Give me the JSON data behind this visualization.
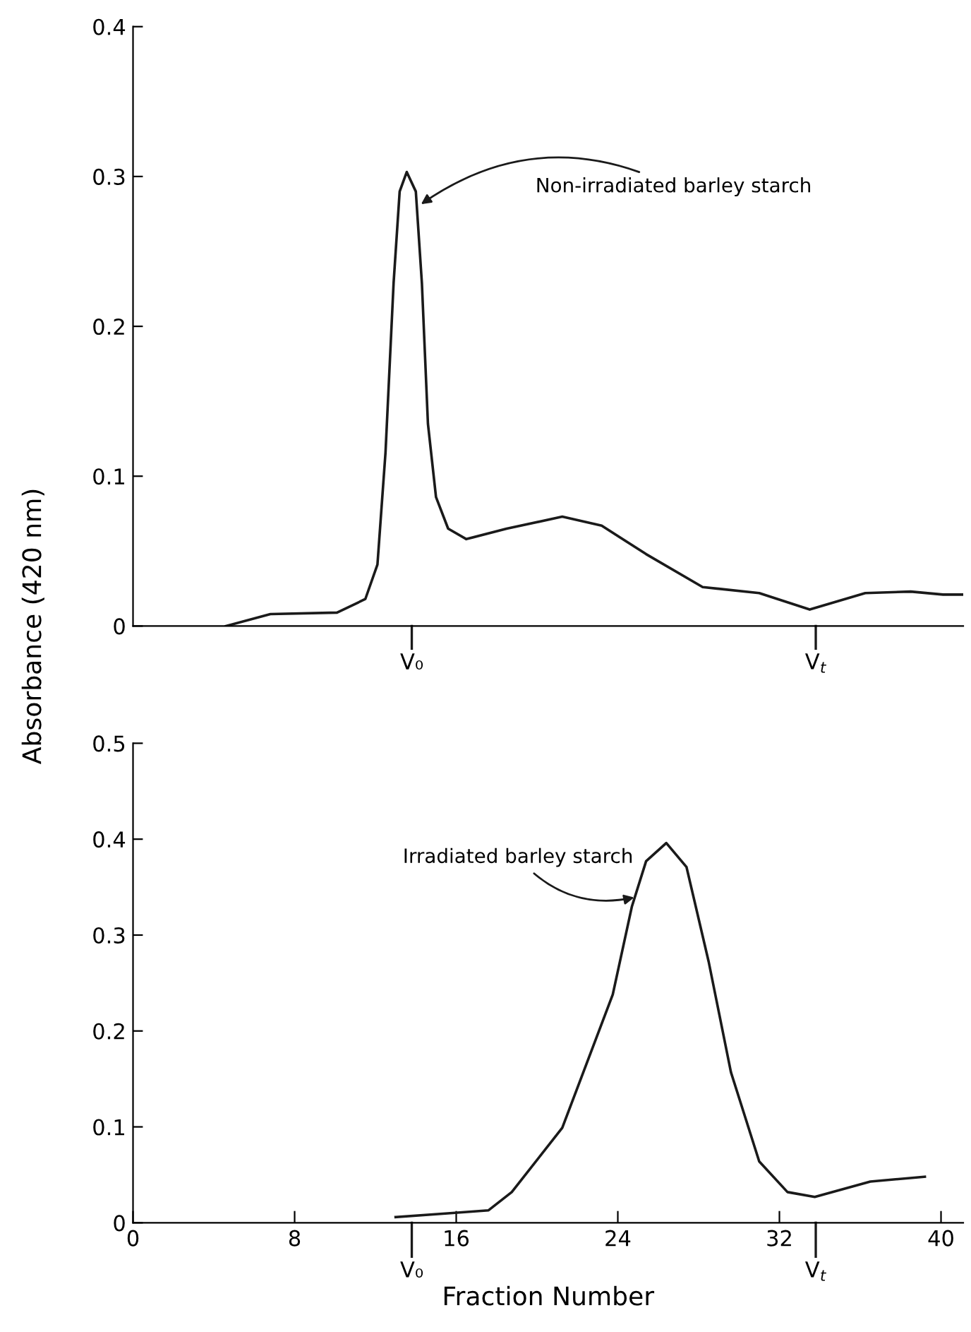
{
  "chart_data": [
    {
      "type": "line",
      "xlim": [
        0,
        41.1
      ],
      "ylim": [
        0,
        0.4
      ],
      "yticks": [
        0,
        0.1,
        0.2,
        0.3,
        0.4
      ],
      "tick_labels": "y",
      "ref_lines": [
        {
          "axis": "x",
          "value": 13.8,
          "label": "V₀"
        },
        {
          "axis": "x",
          "value": 33.8,
          "label": "V$_{t}$"
        }
      ],
      "grid": false,
      "legend": false,
      "marker": "none",
      "line_style": "solid",
      "series": [
        {
          "color": "#1a1a1a",
          "x": [
            4.6,
            6.8,
            10.1,
            11.5,
            12.1,
            12.5,
            12.9,
            13.2,
            13.55,
            14.0,
            14.3,
            14.6,
            15.0,
            15.6,
            16.5,
            18.5,
            21.25,
            23.2,
            25.4,
            28.2,
            31.0,
            33.5,
            36.25,
            38.5,
            40.1,
            41.1
          ],
          "values": [
            0,
            0.008,
            0.009,
            0.018,
            0.041,
            0.116,
            0.229,
            0.29,
            0.303,
            0.29,
            0.229,
            0.135,
            0.086,
            0.065,
            0.058,
            0.065,
            0.073,
            0.067,
            0.048,
            0.026,
            0.022,
            0.011,
            0.022,
            0.023,
            0.021,
            0.021
          ]
        }
      ],
      "annotations": [
        {
          "text": "Non-irradiated barley starch",
          "x": 14.1,
          "y": 0.28
        }
      ]
    },
    {
      "type": "line",
      "xlim": [
        0,
        41.1
      ],
      "ylim": [
        0,
        0.5
      ],
      "yticks": [
        0,
        0.1,
        0.2,
        0.3,
        0.4,
        0.5
      ],
      "xticks": [
        0,
        8,
        16,
        24,
        32,
        40
      ],
      "ref_lines": [
        {
          "axis": "x",
          "value": 13.8,
          "label": "V₀"
        },
        {
          "axis": "x",
          "value": 33.8,
          "label": "V$_{t}$"
        }
      ],
      "xlabel": "Fraction Number",
      "ylabel": "Absorbance (420 nm)",
      "grid": false,
      "legend": false,
      "marker": "none",
      "line_style": "solid",
      "series": [
        {
          "color": "#1a1a1a",
          "x": [
            13.0,
            15.7,
            17.6,
            18.75,
            21.25,
            23.75,
            24.7,
            25.4,
            26.4,
            27.4,
            28.5,
            29.6,
            31.0,
            32.4,
            33.75,
            36.5,
            39.2
          ],
          "values": [
            0.006,
            0.01,
            0.013,
            0.032,
            0.099,
            0.238,
            0.33,
            0.377,
            0.396,
            0.371,
            0.272,
            0.157,
            0.064,
            0.032,
            0.027,
            0.043,
            0.048
          ]
        }
      ],
      "annotations": [
        {
          "text": "Irradiated barley starch",
          "x": 25.0,
          "y": 0.34
        }
      ]
    }
  ]
}
